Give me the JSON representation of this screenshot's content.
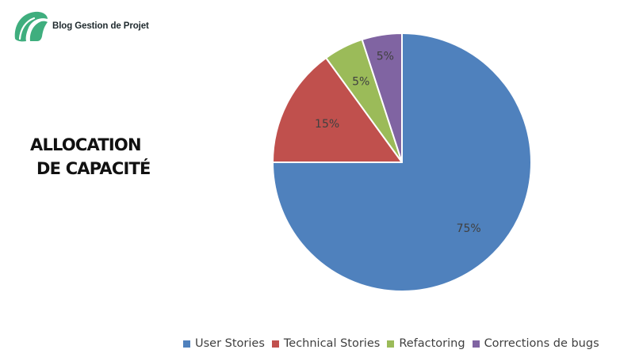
{
  "brand": {
    "name": "Blog Gestion de Projet",
    "logo_icon": "leaf-logo-icon",
    "logo_color": "#3fae7e"
  },
  "side_title": {
    "line1": "ALLOCATION",
    "line2": "DE CAPACITÉ"
  },
  "chart_data": {
    "type": "pie",
    "title": "",
    "categories": [
      "User Stories",
      "Technical Stories",
      "Refactoring",
      "Corrections de bugs"
    ],
    "values": [
      75,
      15,
      5,
      5
    ],
    "labels": [
      "75%",
      "15%",
      "5%",
      "5%"
    ],
    "colors": [
      "#4f81bd",
      "#c0504d",
      "#9bbb59",
      "#8064a2"
    ],
    "legend_position": "bottom"
  }
}
